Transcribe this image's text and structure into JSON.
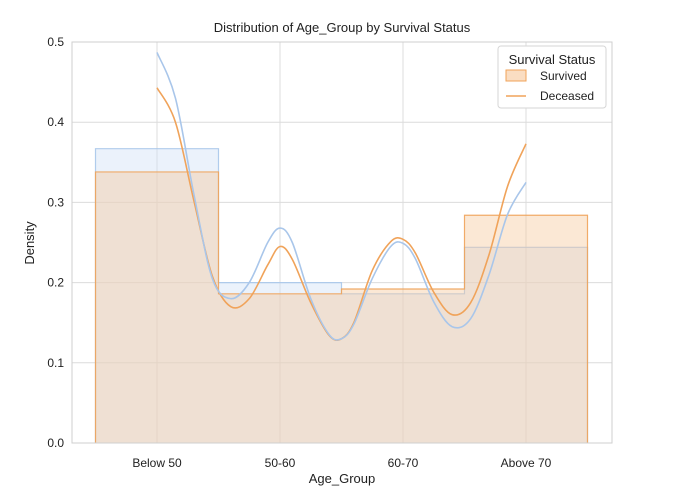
{
  "chart_data": {
    "type": "histogram",
    "title": "Distribution of Age_Group by Survival Status",
    "xlabel": "Age_Group",
    "ylabel": "Density",
    "categories": [
      "Below 50",
      "50-60",
      "60-70",
      "Above 70"
    ],
    "ylim": [
      0,
      0.5
    ],
    "yticks": [
      "0.0",
      "0.1",
      "0.2",
      "0.3",
      "0.4",
      "0.5"
    ],
    "grid": true,
    "legend": {
      "title": "Survival Status",
      "placement": "top-right",
      "entries": [
        "Survived",
        "Deceased"
      ]
    },
    "series": [
      {
        "name": "Survived",
        "color": "#f0a35a",
        "fill": "#f6c79a",
        "bars": [
          0.338,
          0.186,
          0.192,
          0.284
        ],
        "kde": [
          [
            0,
            0.443
          ],
          [
            0.15,
            0.4
          ],
          [
            0.3,
            0.302
          ],
          [
            0.45,
            0.208
          ],
          [
            0.6,
            0.17
          ],
          [
            0.75,
            0.18
          ],
          [
            0.9,
            0.222
          ],
          [
            1.0,
            0.245
          ],
          [
            1.1,
            0.229
          ],
          [
            1.25,
            0.175
          ],
          [
            1.4,
            0.134
          ],
          [
            1.5,
            0.13
          ],
          [
            1.6,
            0.15
          ],
          [
            1.75,
            0.215
          ],
          [
            1.9,
            0.251
          ],
          [
            2.0,
            0.254
          ],
          [
            2.1,
            0.237
          ],
          [
            2.25,
            0.188
          ],
          [
            2.4,
            0.16
          ],
          [
            2.55,
            0.175
          ],
          [
            2.7,
            0.235
          ],
          [
            2.85,
            0.32
          ],
          [
            3.0,
            0.373
          ]
        ]
      },
      {
        "name": "Deceased",
        "color": "#a9c6ea",
        "fill": "#cfe0f5",
        "bars": [
          0.367,
          0.2,
          0.186,
          0.244
        ],
        "kde": [
          [
            0,
            0.487
          ],
          [
            0.15,
            0.43
          ],
          [
            0.3,
            0.31
          ],
          [
            0.45,
            0.205
          ],
          [
            0.6,
            0.18
          ],
          [
            0.75,
            0.2
          ],
          [
            0.9,
            0.25
          ],
          [
            1.0,
            0.268
          ],
          [
            1.1,
            0.25
          ],
          [
            1.25,
            0.18
          ],
          [
            1.4,
            0.135
          ],
          [
            1.5,
            0.13
          ],
          [
            1.6,
            0.148
          ],
          [
            1.75,
            0.205
          ],
          [
            1.9,
            0.245
          ],
          [
            2.0,
            0.249
          ],
          [
            2.1,
            0.23
          ],
          [
            2.25,
            0.176
          ],
          [
            2.4,
            0.145
          ],
          [
            2.55,
            0.155
          ],
          [
            2.7,
            0.21
          ],
          [
            2.85,
            0.285
          ],
          [
            3.0,
            0.325
          ]
        ]
      }
    ]
  }
}
